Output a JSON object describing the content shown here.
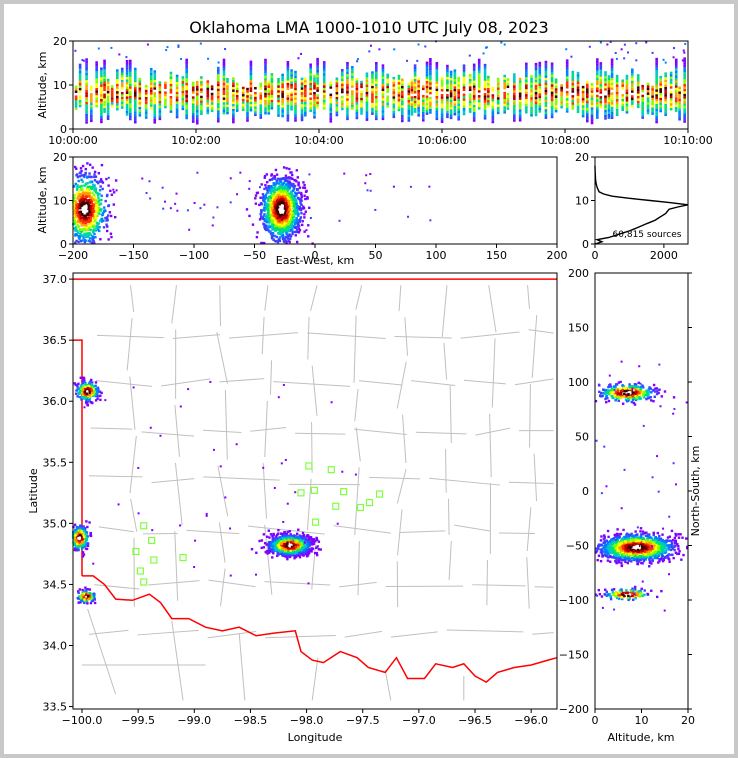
{
  "title": "Oklahoma LMA 1000-1010 UTC July 08, 2023",
  "colors": {
    "density": [
      "#7f00ff",
      "#3f3fff",
      "#0080ff",
      "#00c8c8",
      "#00e070",
      "#7fff00",
      "#ffff00",
      "#ffa000",
      "#ff3000",
      "#c00000",
      "#400000",
      "#ffffff"
    ],
    "state_border": "#ff0000",
    "county_lines": "#c0c0c0",
    "station_marker": "#80ff40",
    "profile_line": "#000000"
  },
  "chart_data": [
    {
      "id": "time_height",
      "type": "heatmap",
      "xlabel": "",
      "ylabel": "Altitude, km",
      "xlim_seconds": [
        0,
        600
      ],
      "ylim": [
        0,
        20
      ],
      "xticks": [
        "10:00:00",
        "10:02:00",
        "10:04:00",
        "10:06:00",
        "10:08:00",
        "10:10:00"
      ],
      "yticks": [
        0,
        10,
        20
      ]
    },
    {
      "id": "ew_height",
      "type": "heatmap",
      "xlabel": "East-West, km",
      "ylabel": "Altitude, km",
      "xlim": [
        -200,
        200
      ],
      "ylim": [
        0,
        20
      ],
      "xticks": [
        -200,
        -150,
        -100,
        -50,
        0,
        50,
        100,
        150,
        200
      ],
      "yticks": [
        0,
        10,
        20
      ],
      "clusters": [
        {
          "x": -190,
          "z": 8,
          "sx": 9,
          "sz": 4,
          "n": 700
        },
        {
          "x": -28,
          "z": 8,
          "sx": 8,
          "sz": 3.5,
          "n": 1300
        }
      ]
    },
    {
      "id": "altitude_histogram",
      "type": "line",
      "xlabel": "",
      "ylabel": "",
      "xlim": [
        0,
        2700
      ],
      "ylim": [
        0,
        20
      ],
      "xticks": [
        0,
        2000
      ],
      "yticks": [
        0,
        10,
        20
      ],
      "annotation": "60,815 sources",
      "profile": [
        [
          0,
          0
        ],
        [
          200,
          0.5
        ],
        [
          60,
          1
        ],
        [
          400,
          1.5
        ],
        [
          600,
          2
        ],
        [
          800,
          2.5
        ],
        [
          1000,
          3
        ],
        [
          1150,
          3.5
        ],
        [
          1300,
          4
        ],
        [
          1450,
          4.5
        ],
        [
          1600,
          5
        ],
        [
          1750,
          5.5
        ],
        [
          1850,
          6
        ],
        [
          1950,
          6.5
        ],
        [
          2050,
          7
        ],
        [
          2100,
          7.5
        ],
        [
          2150,
          8
        ],
        [
          2400,
          8.5
        ],
        [
          2700,
          9
        ],
        [
          2200,
          9.5
        ],
        [
          1600,
          10
        ],
        [
          1000,
          10.5
        ],
        [
          500,
          11
        ],
        [
          250,
          11.5
        ],
        [
          120,
          12
        ],
        [
          60,
          13
        ],
        [
          30,
          14
        ],
        [
          15,
          15
        ],
        [
          8,
          16
        ],
        [
          2,
          17
        ],
        [
          0,
          18
        ]
      ]
    },
    {
      "id": "plan_view",
      "type": "scatter",
      "xlabel": "Longitude",
      "ylabel": "Latitude",
      "xlim": [
        -100.08,
        -95.77
      ],
      "ylim": [
        33.48,
        37.05
      ],
      "xticks": [
        -100.0,
        -99.5,
        -99.0,
        -98.5,
        -98.0,
        -97.5,
        -97.0,
        -96.5,
        -96.0
      ],
      "yticks": [
        33.5,
        34.0,
        34.5,
        35.0,
        35.5,
        36.0,
        36.5,
        37.0
      ],
      "stations": [
        {
          "lon": -97.98,
          "lat": 35.47
        },
        {
          "lon": -97.78,
          "lat": 35.44
        },
        {
          "lon": -98.05,
          "lat": 35.25
        },
        {
          "lon": -97.93,
          "lat": 35.27
        },
        {
          "lon": -97.67,
          "lat": 35.26
        },
        {
          "lon": -97.35,
          "lat": 35.24
        },
        {
          "lon": -97.44,
          "lat": 35.17
        },
        {
          "lon": -97.74,
          "lat": 35.14
        },
        {
          "lon": -97.52,
          "lat": 35.13
        },
        {
          "lon": -97.92,
          "lat": 35.01
        },
        {
          "lon": -99.45,
          "lat": 34.98
        },
        {
          "lon": -99.38,
          "lat": 34.86
        },
        {
          "lon": -99.52,
          "lat": 34.77
        },
        {
          "lon": -99.1,
          "lat": 34.72
        },
        {
          "lon": -99.36,
          "lat": 34.7
        },
        {
          "lon": -99.48,
          "lat": 34.61
        },
        {
          "lon": -99.45,
          "lat": 34.52
        }
      ],
      "clusters": [
        {
          "lon": -98.15,
          "lat": 34.82,
          "slon": 0.09,
          "slat": 0.04,
          "n": 1300
        },
        {
          "lon": -100.02,
          "lat": 34.88,
          "slon": 0.04,
          "slat": 0.05,
          "n": 300
        },
        {
          "lon": -99.95,
          "lat": 36.08,
          "slon": 0.05,
          "slat": 0.04,
          "n": 220
        },
        {
          "lon": -99.96,
          "lat": 34.4,
          "slon": 0.04,
          "slat": 0.025,
          "n": 120
        }
      ]
    },
    {
      "id": "ns_height",
      "type": "heatmap",
      "xlabel": "Altitude, km",
      "ylabel": "North-South, km",
      "xlim": [
        0,
        20
      ],
      "ylim": [
        -200,
        200
      ],
      "xticks": [
        0,
        10,
        20
      ],
      "yticks": [
        -200,
        -150,
        -100,
        -50,
        0,
        50,
        100,
        150,
        200
      ],
      "clusters": [
        {
          "z": 9,
          "y": -52,
          "sz": 4,
          "sy": 6,
          "n": 1300
        },
        {
          "z": 7,
          "y": 90,
          "sz": 3,
          "sy": 4,
          "n": 300
        },
        {
          "z": 7,
          "y": -95,
          "sz": 2.5,
          "sy": 2.5,
          "n": 120
        }
      ]
    }
  ]
}
